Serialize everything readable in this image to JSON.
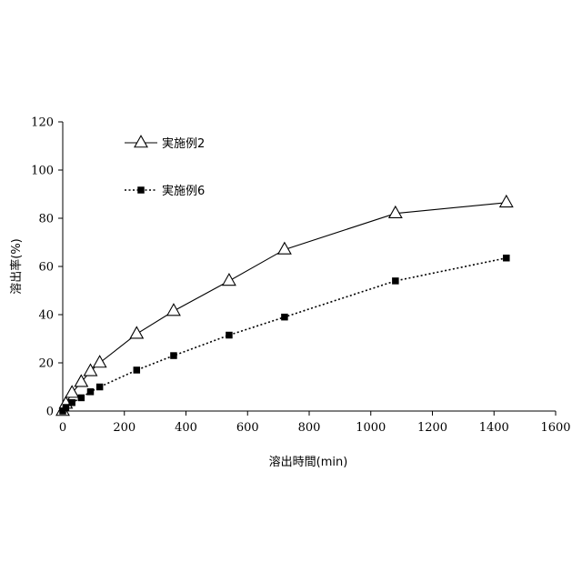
{
  "chart_data": {
    "type": "line",
    "title": "",
    "xlabel": "溶出時間(min)",
    "ylabel": "溶出率(%)",
    "xlim": [
      0,
      1600
    ],
    "ylim": [
      0,
      120
    ],
    "xticks": [
      0,
      200,
      400,
      600,
      800,
      1000,
      1200,
      1400,
      1600
    ],
    "yticks": [
      0,
      20,
      40,
      60,
      80,
      100,
      120
    ],
    "grid": false,
    "legend_position": "top-left",
    "series": [
      {
        "name": "実施例2",
        "marker": "open-triangle",
        "line_style": "solid",
        "color": "#000000",
        "points": [
          {
            "x": 0,
            "y": 0
          },
          {
            "x": 10,
            "y": 3
          },
          {
            "x": 30,
            "y": 7.5
          },
          {
            "x": 60,
            "y": 12
          },
          {
            "x": 90,
            "y": 16.5
          },
          {
            "x": 120,
            "y": 20
          },
          {
            "x": 240,
            "y": 32
          },
          {
            "x": 360,
            "y": 41.5
          },
          {
            "x": 540,
            "y": 54
          },
          {
            "x": 720,
            "y": 67
          },
          {
            "x": 1080,
            "y": 82
          },
          {
            "x": 1440,
            "y": 86.5
          }
        ]
      },
      {
        "name": "実施例6",
        "marker": "filled-square",
        "line_style": "dotted",
        "color": "#000000",
        "points": [
          {
            "x": 0,
            "y": 0
          },
          {
            "x": 10,
            "y": 1.5
          },
          {
            "x": 30,
            "y": 3.5
          },
          {
            "x": 60,
            "y": 5.5
          },
          {
            "x": 90,
            "y": 8
          },
          {
            "x": 120,
            "y": 10
          },
          {
            "x": 240,
            "y": 17
          },
          {
            "x": 360,
            "y": 23
          },
          {
            "x": 540,
            "y": 31.5
          },
          {
            "x": 720,
            "y": 39
          },
          {
            "x": 1080,
            "y": 54
          },
          {
            "x": 1440,
            "y": 63.5
          }
        ]
      }
    ]
  }
}
